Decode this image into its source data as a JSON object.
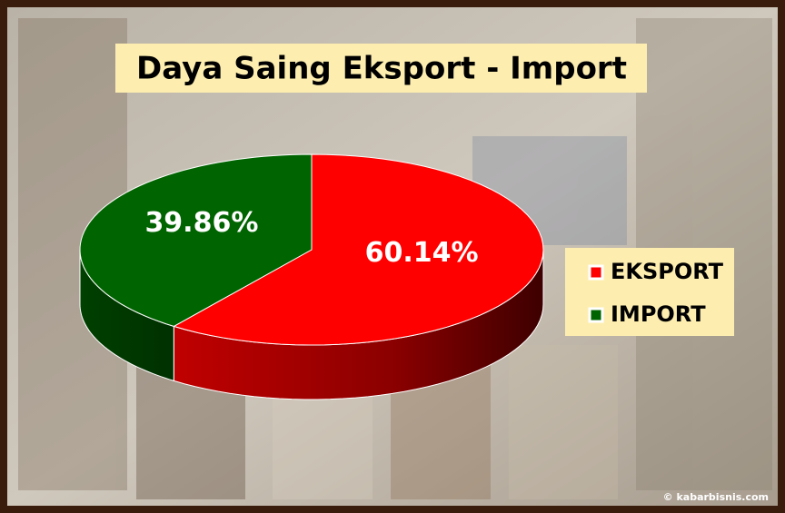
{
  "chart_data": {
    "type": "pie3d",
    "title": "Daya Saing Eksport - Import",
    "categories": [
      "EKSPORT",
      "IMPORT"
    ],
    "values": [
      60.14,
      39.86
    ],
    "value_labels": [
      "60.14%",
      "39.86%"
    ],
    "colors": [
      "#ff0000",
      "#006400"
    ],
    "legend": "right",
    "watermark": "© kabarbisnis.com"
  }
}
